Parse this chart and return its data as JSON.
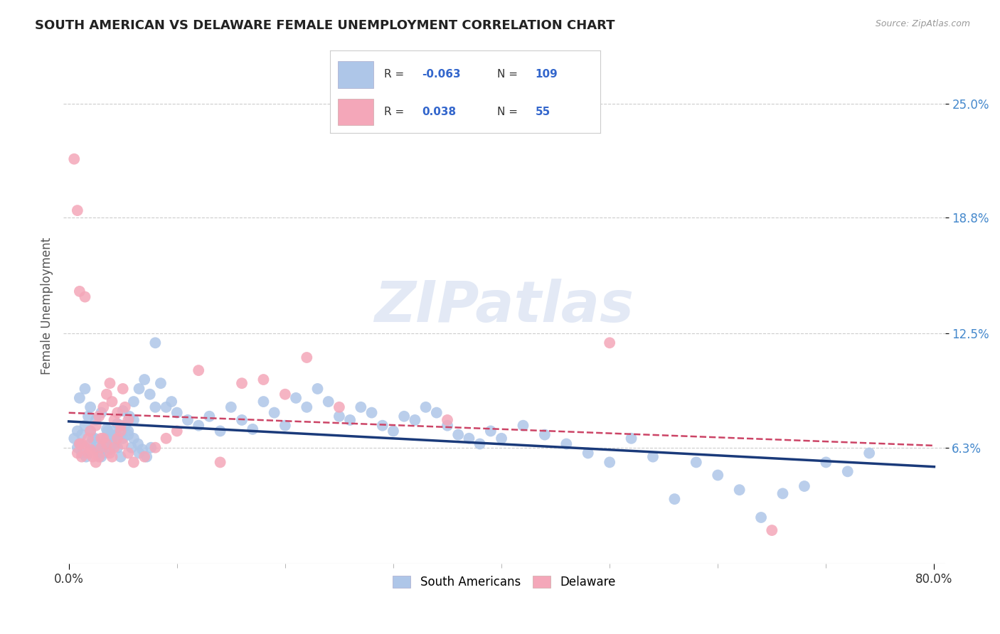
{
  "title": "SOUTH AMERICAN VS DELAWARE FEMALE UNEMPLOYMENT CORRELATION CHART",
  "source": "Source: ZipAtlas.com",
  "ylabel": "Female Unemployment",
  "xlabel_ticks": [
    "0.0%",
    "80.0%"
  ],
  "ytick_labels": [
    "6.3%",
    "12.5%",
    "18.8%",
    "25.0%"
  ],
  "ytick_values": [
    0.063,
    0.125,
    0.188,
    0.25
  ],
  "xlim": [
    0.0,
    0.8
  ],
  "ylim": [
    0.0,
    0.28
  ],
  "blue_color": "#aec6e8",
  "pink_color": "#f4a7b9",
  "blue_line_color": "#1a3a7a",
  "pink_line_color": "#cc4466",
  "legend_R_blue": "-0.063",
  "legend_N_blue": "109",
  "legend_R_pink": "0.038",
  "legend_N_pink": "55",
  "blue_scatter_x": [
    0.005,
    0.008,
    0.01,
    0.012,
    0.015,
    0.018,
    0.02,
    0.022,
    0.025,
    0.028,
    0.03,
    0.032,
    0.035,
    0.038,
    0.04,
    0.042,
    0.045,
    0.048,
    0.05,
    0.052,
    0.055,
    0.058,
    0.06,
    0.065,
    0.01,
    0.015,
    0.02,
    0.025,
    0.03,
    0.035,
    0.04,
    0.045,
    0.05,
    0.055,
    0.06,
    0.065,
    0.07,
    0.075,
    0.08,
    0.085,
    0.09,
    0.095,
    0.1,
    0.11,
    0.12,
    0.13,
    0.14,
    0.15,
    0.16,
    0.17,
    0.18,
    0.19,
    0.2,
    0.21,
    0.22,
    0.23,
    0.24,
    0.25,
    0.26,
    0.27,
    0.28,
    0.29,
    0.3,
    0.31,
    0.32,
    0.33,
    0.34,
    0.35,
    0.36,
    0.37,
    0.38,
    0.39,
    0.4,
    0.42,
    0.44,
    0.46,
    0.48,
    0.5,
    0.52,
    0.54,
    0.56,
    0.58,
    0.6,
    0.62,
    0.64,
    0.66,
    0.68,
    0.7,
    0.72,
    0.74,
    0.008,
    0.012,
    0.016,
    0.02,
    0.024,
    0.028,
    0.032,
    0.036,
    0.04,
    0.044,
    0.048,
    0.052,
    0.056,
    0.06,
    0.064,
    0.068,
    0.072,
    0.076,
    0.08
  ],
  "blue_scatter_y": [
    0.068,
    0.072,
    0.065,
    0.07,
    0.075,
    0.08,
    0.072,
    0.068,
    0.063,
    0.06,
    0.058,
    0.065,
    0.068,
    0.062,
    0.072,
    0.065,
    0.063,
    0.07,
    0.068,
    0.075,
    0.072,
    0.063,
    0.068,
    0.06,
    0.09,
    0.095,
    0.085,
    0.078,
    0.082,
    0.073,
    0.069,
    0.076,
    0.083,
    0.07,
    0.088,
    0.095,
    0.1,
    0.092,
    0.085,
    0.098,
    0.085,
    0.088,
    0.082,
    0.078,
    0.075,
    0.08,
    0.072,
    0.085,
    0.078,
    0.073,
    0.088,
    0.082,
    0.075,
    0.09,
    0.085,
    0.095,
    0.088,
    0.08,
    0.078,
    0.085,
    0.082,
    0.075,
    0.072,
    0.08,
    0.078,
    0.085,
    0.082,
    0.075,
    0.07,
    0.068,
    0.065,
    0.072,
    0.068,
    0.075,
    0.07,
    0.065,
    0.06,
    0.055,
    0.068,
    0.058,
    0.035,
    0.055,
    0.048,
    0.04,
    0.025,
    0.038,
    0.042,
    0.055,
    0.05,
    0.06,
    0.063,
    0.06,
    0.058,
    0.065,
    0.068,
    0.062,
    0.06,
    0.072,
    0.065,
    0.07,
    0.058,
    0.075,
    0.08,
    0.078,
    0.065,
    0.062,
    0.058,
    0.063,
    0.12
  ],
  "pink_scatter_x": [
    0.005,
    0.008,
    0.01,
    0.012,
    0.015,
    0.018,
    0.02,
    0.022,
    0.025,
    0.028,
    0.03,
    0.032,
    0.035,
    0.038,
    0.04,
    0.042,
    0.045,
    0.048,
    0.05,
    0.052,
    0.055,
    0.008,
    0.01,
    0.012,
    0.015,
    0.018,
    0.02,
    0.022,
    0.025,
    0.028,
    0.03,
    0.032,
    0.035,
    0.038,
    0.04,
    0.042,
    0.045,
    0.048,
    0.05,
    0.055,
    0.06,
    0.07,
    0.08,
    0.09,
    0.1,
    0.12,
    0.14,
    0.16,
    0.18,
    0.2,
    0.22,
    0.25,
    0.35,
    0.5,
    0.65
  ],
  "pink_scatter_y": [
    0.22,
    0.192,
    0.148,
    0.065,
    0.145,
    0.06,
    0.062,
    0.058,
    0.075,
    0.08,
    0.068,
    0.085,
    0.092,
    0.098,
    0.088,
    0.078,
    0.082,
    0.075,
    0.095,
    0.085,
    0.078,
    0.06,
    0.065,
    0.058,
    0.063,
    0.068,
    0.072,
    0.06,
    0.055,
    0.058,
    0.063,
    0.068,
    0.065,
    0.06,
    0.058,
    0.063,
    0.068,
    0.072,
    0.065,
    0.06,
    0.055,
    0.058,
    0.063,
    0.068,
    0.072,
    0.105,
    0.055,
    0.098,
    0.1,
    0.092,
    0.112,
    0.085,
    0.078,
    0.12,
    0.018
  ]
}
